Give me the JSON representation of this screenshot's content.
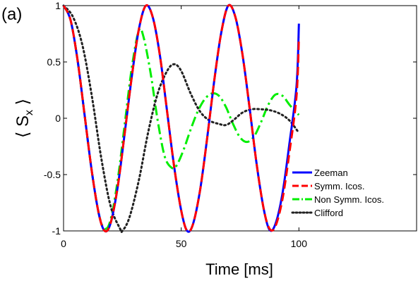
{
  "panel_label": "(a)",
  "chart_data": {
    "type": "line",
    "xlabel": "Time [ms]",
    "ylabel": "S",
    "ylabel_subscript": "x",
    "xlim": [
      0,
      150
    ],
    "ylim": [
      -1,
      1
    ],
    "xticks": [
      0,
      50,
      100
    ],
    "xtick_labels": [
      "0",
      "50",
      "100"
    ],
    "yticks": [
      -1,
      -0.5,
      0,
      0.5,
      1
    ],
    "ytick_labels": [
      "-1",
      "-0.5",
      "0",
      "0.5",
      "1"
    ],
    "grid": false,
    "legend_position": "bottom-right",
    "series": [
      {
        "name": "Zeeman",
        "color": "#0000ff",
        "style": "solid",
        "x": [
          0,
          3,
          6,
          9,
          12,
          15,
          17.5,
          20,
          23,
          26,
          29,
          32,
          35,
          38,
          41,
          44,
          47,
          50,
          52.5,
          55,
          58,
          61,
          64,
          67,
          70,
          73,
          76,
          79,
          82,
          85,
          87.5,
          90,
          93,
          96,
          99,
          100
        ],
        "y": [
          1,
          0.87,
          0.51,
          0.02,
          -0.47,
          -0.85,
          -1,
          -0.93,
          -0.61,
          -0.13,
          0.37,
          0.79,
          1,
          0.89,
          0.55,
          0.06,
          -0.43,
          -0.82,
          -1,
          -0.94,
          -0.64,
          -0.18,
          0.33,
          0.76,
          1,
          0.9,
          0.57,
          0.1,
          -0.4,
          -0.8,
          -0.99,
          -0.94,
          -0.67,
          -0.22,
          0.29,
          0.84
        ]
      },
      {
        "name": "Symm. Icos.",
        "color": "#ff0000",
        "style": "dashed",
        "x": [
          0,
          3,
          6,
          9,
          12,
          15,
          17.5,
          20,
          23,
          26,
          29,
          32,
          35,
          38,
          41,
          44,
          47,
          50,
          52.5,
          55,
          58,
          61,
          64,
          67,
          70,
          73,
          76,
          79,
          82,
          85,
          87.5,
          90,
          93,
          96,
          99,
          100
        ],
        "y": [
          1,
          0.87,
          0.51,
          0.02,
          -0.47,
          -0.85,
          -1,
          -0.93,
          -0.61,
          -0.13,
          0.37,
          0.79,
          1,
          0.89,
          0.55,
          0.06,
          -0.43,
          -0.82,
          -1,
          -0.94,
          -0.64,
          -0.18,
          0.33,
          0.76,
          1,
          0.9,
          0.57,
          0.1,
          -0.4,
          -0.8,
          -0.98,
          -0.96,
          -0.72,
          -0.3,
          0.2,
          0.72
        ]
      },
      {
        "name": "Non Symm. Icos.",
        "color": "#00ee00",
        "style": "dashdot",
        "x": [
          0,
          3,
          6,
          9,
          12,
          15,
          17.5,
          20,
          23,
          26,
          29,
          32,
          34,
          37,
          40,
          43,
          46,
          48,
          51,
          54,
          57,
          60,
          63,
          66,
          69,
          72,
          75,
          78,
          81,
          84,
          87,
          90,
          93,
          96,
          99,
          100
        ],
        "y": [
          1,
          0.87,
          0.51,
          0.02,
          -0.47,
          -0.85,
          -0.98,
          -0.9,
          -0.55,
          -0.05,
          0.45,
          0.78,
          0.72,
          0.4,
          -0.02,
          -0.34,
          -0.44,
          -0.42,
          -0.28,
          -0.1,
          0.06,
          0.17,
          0.22,
          0.2,
          0.1,
          -0.05,
          -0.17,
          -0.21,
          -0.16,
          -0.03,
          0.12,
          0.21,
          0.2,
          0.12,
          0.05,
          0.03
        ]
      },
      {
        "name": "Clifford",
        "color": "#222222",
        "style": "dotted",
        "x": [
          0,
          4,
          8,
          12,
          16,
          20,
          24,
          25,
          28,
          32,
          36,
          40,
          44,
          47,
          50,
          54,
          58,
          62,
          66,
          69,
          72,
          76,
          80,
          84,
          88,
          92,
          96,
          100
        ],
        "y": [
          1,
          0.9,
          0.65,
          0.2,
          -0.35,
          -0.78,
          -0.98,
          -1,
          -0.88,
          -0.55,
          -0.12,
          0.22,
          0.42,
          0.48,
          0.42,
          0.22,
          0.06,
          -0.02,
          -0.05,
          -0.06,
          -0.02,
          0.05,
          0.08,
          0.08,
          0.07,
          0.04,
          -0.02,
          -0.13
        ]
      }
    ]
  }
}
